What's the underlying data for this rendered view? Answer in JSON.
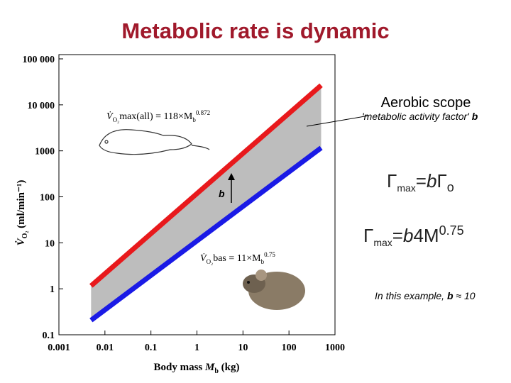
{
  "chart_data": {
    "type": "line",
    "title": "Metabolic rate is dynamic",
    "x_label": {
      "main": "Body mass ",
      "var": "M",
      "sub": "b",
      "unit": " (kg)"
    },
    "y_label": {
      "main": "V̇",
      "sub": "O₂",
      "unit": " (ml/min⁻¹)"
    },
    "x": [
      0.005,
      500
    ],
    "series": [
      {
        "name": "V̇O₂max(all)",
        "color": "#e8191c",
        "values": [
          1.16,
          26600
        ]
      },
      {
        "name": "V̇O₂bas",
        "color": "#1a1ae6",
        "values": [
          0.207,
          1163
        ]
      }
    ],
    "band_color": "#bdbdbd",
    "xlim": [
      0.001,
      1000
    ],
    "ylim": [
      0.1,
      100000
    ],
    "log_x": true,
    "log_y": true,
    "xticks": [
      0.001,
      0.01,
      0.1,
      1,
      10,
      100,
      1000
    ],
    "yticks": [
      0.1,
      1,
      10,
      100,
      1000,
      {
        "value": 10000,
        "label": "10 000"
      },
      {
        "value": 100000,
        "label": "100 000"
      }
    ],
    "annotations": {
      "eq_max": {
        "v": "V̇",
        "o": "O₂",
        "mid": "max(all) = 118×M",
        "b": "b",
        "exp": "0.872"
      },
      "eq_bas": {
        "v": "V̇",
        "o": "O₂",
        "mid": "bas = 11×M",
        "b": "b",
        "exp": "0.75"
      },
      "b_marker": "b",
      "aerobic_scope": "Aerobic scope",
      "activity_factor": {
        "text": "'metabolic activity factor' ",
        "b": "b"
      },
      "formula1": {
        "g": "Γ",
        "sub": "max",
        "mid": "=",
        "b": "b",
        "g2": "Γ",
        "sub2": "o"
      },
      "formula2": {
        "g": "Γ",
        "sub": "max",
        "mid": "=",
        "b": "b",
        "rest": "4M",
        "exp": "0.75"
      },
      "example": {
        "text": "In this example, ",
        "b": "b",
        "rest": " ≈ 10"
      }
    }
  }
}
